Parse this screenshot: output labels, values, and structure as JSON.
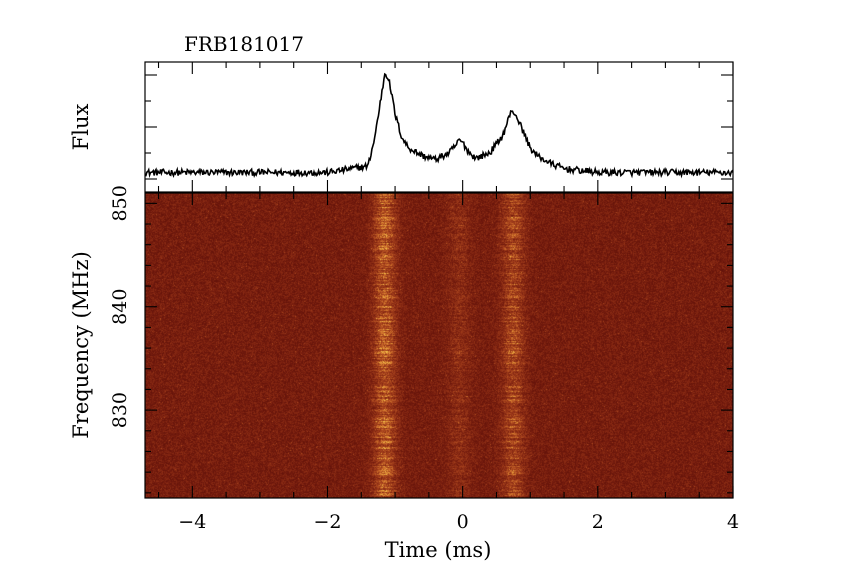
{
  "chart_data": {
    "type": "line",
    "title": "FRB181017",
    "panels": [
      {
        "name": "profile",
        "ylabel": "Flux",
        "xlim": [
          -4.7,
          4.0
        ],
        "ylim": [
          0,
          1
        ],
        "show_y_tick_labels": false,
        "series": [
          {
            "x": [
              -4.7,
              -2.0,
              -1.4,
              -1.3,
              -1.2,
              -1.15,
              -1.1,
              -1.05,
              -1.0,
              -0.9,
              -0.8,
              -0.6,
              -0.4,
              -0.2,
              -0.1,
              -0.05,
              0.0,
              0.1,
              0.2,
              0.4,
              0.6,
              0.7,
              0.75,
              0.8,
              0.9,
              1.0,
              1.1,
              1.3,
              1.5,
              2.0,
              4.0
            ],
            "y": [
              0.15,
              0.15,
              0.2,
              0.42,
              0.75,
              0.92,
              0.88,
              0.75,
              0.6,
              0.42,
              0.34,
              0.28,
              0.25,
              0.3,
              0.36,
              0.4,
              0.38,
              0.3,
              0.26,
              0.3,
              0.44,
              0.6,
              0.62,
              0.58,
              0.46,
              0.34,
              0.28,
              0.22,
              0.18,
              0.15,
              0.15
            ],
            "noise_level": 0.025
          }
        ]
      },
      {
        "name": "waterfall",
        "type": "heatmap",
        "xlabel": "Time (ms)",
        "ylabel": "Frequency (MHz)",
        "xlim": [
          -4.7,
          4.0
        ],
        "ylim": [
          821.5,
          851
        ],
        "xticks": [
          -4,
          -2,
          0,
          2,
          4
        ],
        "yticks": [
          830,
          840,
          850
        ],
        "components": [
          {
            "t": -1.15,
            "width": 0.12,
            "strength": 1.0
          },
          {
            "t": -0.05,
            "width": 0.12,
            "strength": 0.35
          },
          {
            "t": 0.75,
            "width": 0.12,
            "strength": 0.75
          }
        ],
        "colormap": [
          "#5a0d07",
          "#7a1f0f",
          "#a5401c",
          "#d67a2f",
          "#f5c44b"
        ]
      }
    ],
    "x_tick_labels": [
      "−4",
      "−2",
      "0",
      "2",
      "4"
    ],
    "y_tick_labels": [
      "830",
      "840",
      "850"
    ]
  }
}
